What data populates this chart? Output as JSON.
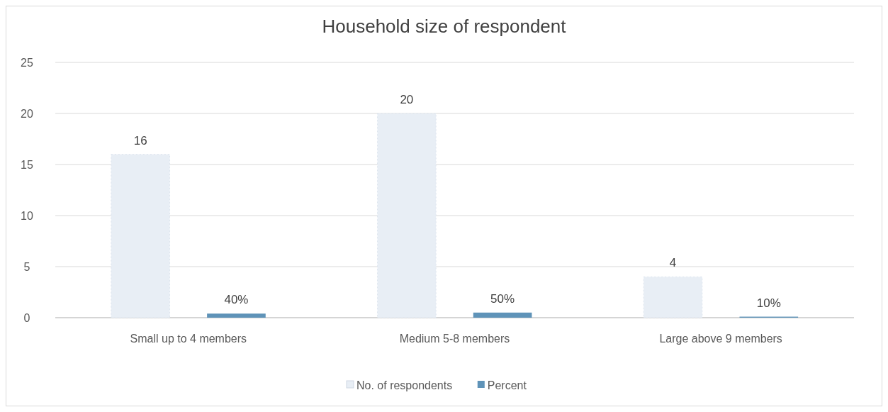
{
  "chart_data": {
    "type": "bar",
    "title": "Household size of respondent",
    "categories": [
      "Small up to 4 members",
      "Medium 5-8 members",
      "Large above 9 members"
    ],
    "series": [
      {
        "name": "No. of respondents",
        "color": "#e8eef5",
        "values": [
          16,
          20,
          4
        ],
        "value_labels": [
          "16",
          "20",
          "4"
        ]
      },
      {
        "name": "Percent",
        "color": "#5f93b8",
        "values": [
          0.4,
          0.5,
          0.1
        ],
        "value_labels": [
          "40%",
          "50%",
          "10%"
        ]
      }
    ],
    "ylim": [
      0,
      25
    ],
    "yticks": [
      0,
      5,
      10,
      15,
      20,
      25
    ],
    "grid": "y",
    "legend": "bottom"
  }
}
